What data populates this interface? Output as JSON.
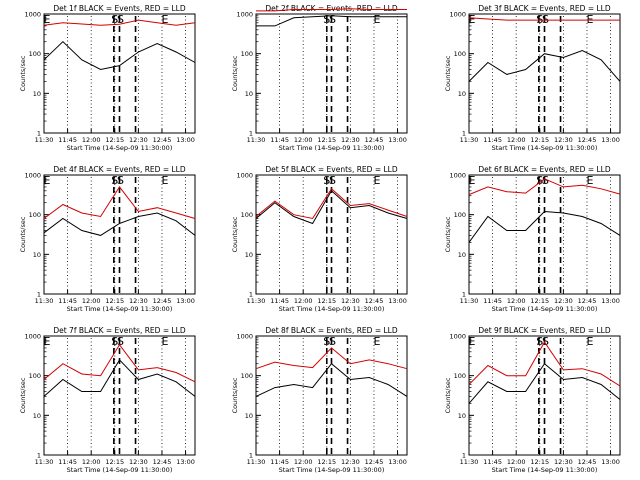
{
  "figure": {
    "xtick_labels": [
      "11:30",
      "11:45",
      "12:00",
      "12:15",
      "12:30",
      "12:45",
      "13:00"
    ],
    "ytick_labels": [
      "1",
      "10",
      "100",
      "1000"
    ],
    "xlabel": "Start Time (14-Sep-09 11:30:00)",
    "ylabel": "Counts/sec",
    "colors": {
      "events": "#000000",
      "lld": "#d40000",
      "axes": "#000000"
    }
  },
  "chart_data": [
    {
      "type": "line",
      "title": "Det 1f BLACK = Events, RED = LLD",
      "markers": [
        {
          "t": 11.5,
          "label": "E"
        },
        {
          "t": 12.25,
          "label": "S"
        },
        {
          "t": 12.31,
          "label": "S"
        },
        {
          "t": 12.75,
          "label": "E"
        }
      ],
      "dashed_lines": [
        12.24,
        12.3,
        12.47
      ],
      "series": [
        {
          "name": "Events",
          "x": [
            11.5,
            11.7,
            11.9,
            12.1,
            12.3,
            12.5,
            12.7,
            12.9,
            13.1
          ],
          "y": [
            70,
            200,
            70,
            40,
            50,
            110,
            180,
            110,
            60
          ]
        },
        {
          "name": "LLD",
          "x": [
            11.5,
            11.7,
            11.9,
            12.1,
            12.3,
            12.5,
            12.7,
            12.9,
            13.1
          ],
          "y": [
            520,
            600,
            560,
            520,
            550,
            700,
            600,
            520,
            600
          ]
        }
      ]
    },
    {
      "type": "line",
      "title": "Det 2f BLACK = Events, RED = LLD",
      "markers": [
        {
          "t": 12.25,
          "label": "S"
        },
        {
          "t": 12.31,
          "label": "S"
        },
        {
          "t": 12.75,
          "label": "E"
        }
      ],
      "dashed_lines": [
        12.25,
        12.3,
        12.47
      ],
      "series": [
        {
          "name": "Events",
          "x": [
            11.5,
            11.7,
            11.9,
            12.1,
            12.3,
            12.5,
            12.7,
            12.9,
            13.1
          ],
          "y": [
            500,
            500,
            800,
            850,
            900,
            850,
            850,
            850,
            850
          ]
        },
        {
          "name": "LLD",
          "x": [
            11.5,
            11.7,
            11.9,
            12.1,
            12.3,
            12.5,
            12.7,
            12.9,
            13.1
          ],
          "y": [
            1200,
            1200,
            1300,
            1300,
            1300,
            1350,
            1300,
            1300,
            1300
          ]
        }
      ]
    },
    {
      "type": "line",
      "title": "Det 3f BLACK = Events, RED = LLD",
      "markers": [
        {
          "t": 11.5,
          "label": "E"
        },
        {
          "t": 12.25,
          "label": "S"
        },
        {
          "t": 12.31,
          "label": "S"
        },
        {
          "t": 12.75,
          "label": "E"
        }
      ],
      "dashed_lines": [
        12.24,
        12.3,
        12.47
      ],
      "series": [
        {
          "name": "Events",
          "x": [
            11.5,
            11.7,
            11.9,
            12.1,
            12.3,
            12.5,
            12.7,
            12.9,
            13.1
          ],
          "y": [
            20,
            60,
            30,
            40,
            100,
            80,
            120,
            70,
            20
          ]
        },
        {
          "name": "LLD",
          "x": [
            11.5,
            11.7,
            11.9,
            12.1,
            12.3,
            12.5,
            12.7,
            12.9,
            13.1
          ],
          "y": [
            800,
            750,
            700,
            700,
            700,
            700,
            700,
            700,
            700
          ]
        }
      ]
    },
    {
      "type": "line",
      "title": "Det 4f BLACK = Events, RED = LLD",
      "markers": [
        {
          "t": 11.5,
          "label": "E"
        },
        {
          "t": 12.25,
          "label": "S"
        },
        {
          "t": 12.31,
          "label": "S"
        },
        {
          "t": 12.75,
          "label": "E"
        }
      ],
      "dashed_lines": [
        12.24,
        12.3,
        12.47
      ],
      "series": [
        {
          "name": "Events",
          "x": [
            11.5,
            11.7,
            11.9,
            12.1,
            12.3,
            12.5,
            12.7,
            12.9,
            13.1
          ],
          "y": [
            35,
            80,
            40,
            30,
            60,
            90,
            110,
            70,
            30
          ]
        },
        {
          "name": "LLD",
          "x": [
            11.5,
            11.7,
            11.9,
            12.1,
            12.3,
            12.5,
            12.7,
            12.9,
            13.1
          ],
          "y": [
            80,
            180,
            110,
            90,
            500,
            120,
            150,
            110,
            80
          ]
        }
      ]
    },
    {
      "type": "line",
      "title": "Det 5f BLACK = Events, RED = LLD",
      "markers": [
        {
          "t": 12.25,
          "label": "S"
        },
        {
          "t": 12.31,
          "label": "S"
        },
        {
          "t": 12.75,
          "label": "E"
        }
      ],
      "dashed_lines": [
        12.25,
        12.3,
        12.47
      ],
      "series": [
        {
          "name": "Events",
          "x": [
            11.5,
            11.7,
            11.9,
            12.1,
            12.3,
            12.5,
            12.7,
            12.9,
            13.1
          ],
          "y": [
            80,
            200,
            90,
            60,
            400,
            150,
            170,
            110,
            80
          ]
        },
        {
          "name": "LLD",
          "x": [
            11.5,
            11.7,
            11.9,
            12.1,
            12.3,
            12.5,
            12.7,
            12.9,
            13.1
          ],
          "y": [
            90,
            220,
            100,
            80,
            450,
            170,
            190,
            130,
            90
          ]
        }
      ]
    },
    {
      "type": "line",
      "title": "Det 6f BLACK = Events, RED = LLD",
      "markers": [
        {
          "t": 11.5,
          "label": "E"
        },
        {
          "t": 12.25,
          "label": "S"
        },
        {
          "t": 12.31,
          "label": "S"
        },
        {
          "t": 12.75,
          "label": "E"
        }
      ],
      "dashed_lines": [
        12.24,
        12.3,
        12.47
      ],
      "series": [
        {
          "name": "Events",
          "x": [
            11.5,
            11.7,
            11.9,
            12.1,
            12.3,
            12.5,
            12.7,
            12.9,
            13.1
          ],
          "y": [
            20,
            90,
            40,
            40,
            120,
            110,
            90,
            60,
            30
          ]
        },
        {
          "name": "LLD",
          "x": [
            11.5,
            11.7,
            11.9,
            12.1,
            12.3,
            12.5,
            12.7,
            12.9,
            13.1
          ],
          "y": [
            320,
            500,
            380,
            350,
            800,
            500,
            550,
            450,
            330
          ]
        }
      ]
    },
    {
      "type": "line",
      "title": "Det 7f BLACK = Events, RED = LLD",
      "markers": [
        {
          "t": 11.5,
          "label": "E"
        },
        {
          "t": 12.25,
          "label": "S"
        },
        {
          "t": 12.31,
          "label": "S"
        },
        {
          "t": 12.75,
          "label": "E"
        }
      ],
      "dashed_lines": [
        12.24,
        12.3,
        12.47
      ],
      "series": [
        {
          "name": "Events",
          "x": [
            11.5,
            11.7,
            11.9,
            12.1,
            12.3,
            12.5,
            12.7,
            12.9,
            13.1
          ],
          "y": [
            30,
            80,
            40,
            40,
            250,
            80,
            110,
            70,
            30
          ]
        },
        {
          "name": "LLD",
          "x": [
            11.5,
            11.7,
            11.9,
            12.1,
            12.3,
            12.5,
            12.7,
            12.9,
            13.1
          ],
          "y": [
            80,
            200,
            110,
            100,
            600,
            140,
            160,
            120,
            70
          ]
        }
      ]
    },
    {
      "type": "line",
      "title": "Det 8f BLACK = Events, RED = LLD",
      "markers": [
        {
          "t": 12.25,
          "label": "S"
        },
        {
          "t": 12.31,
          "label": "S"
        },
        {
          "t": 12.75,
          "label": "E"
        }
      ],
      "dashed_lines": [
        12.25,
        12.3,
        12.47
      ],
      "series": [
        {
          "name": "Events",
          "x": [
            11.5,
            11.7,
            11.9,
            12.1,
            12.3,
            12.5,
            12.7,
            12.9,
            13.1
          ],
          "y": [
            30,
            50,
            60,
            50,
            200,
            80,
            90,
            60,
            30
          ]
        },
        {
          "name": "LLD",
          "x": [
            11.5,
            11.7,
            11.9,
            12.1,
            12.3,
            12.5,
            12.7,
            12.9,
            13.1
          ],
          "y": [
            150,
            220,
            180,
            160,
            500,
            200,
            250,
            200,
            150
          ]
        }
      ]
    },
    {
      "type": "line",
      "title": "Det 9f BLACK = Events, RED = LLD",
      "markers": [
        {
          "t": 11.5,
          "label": "E"
        },
        {
          "t": 12.25,
          "label": "S"
        },
        {
          "t": 12.31,
          "label": "S"
        },
        {
          "t": 12.75,
          "label": "E"
        }
      ],
      "dashed_lines": [
        12.24,
        12.3,
        12.47
      ],
      "series": [
        {
          "name": "Events",
          "x": [
            11.5,
            11.7,
            11.9,
            12.1,
            12.3,
            12.5,
            12.7,
            12.9,
            13.1
          ],
          "y": [
            20,
            70,
            40,
            40,
            200,
            80,
            90,
            60,
            25
          ]
        },
        {
          "name": "LLD",
          "x": [
            11.5,
            11.7,
            11.9,
            12.1,
            12.3,
            12.5,
            12.7,
            12.9,
            13.1
          ],
          "y": [
            60,
            180,
            100,
            100,
            700,
            140,
            150,
            110,
            55
          ]
        }
      ]
    }
  ]
}
